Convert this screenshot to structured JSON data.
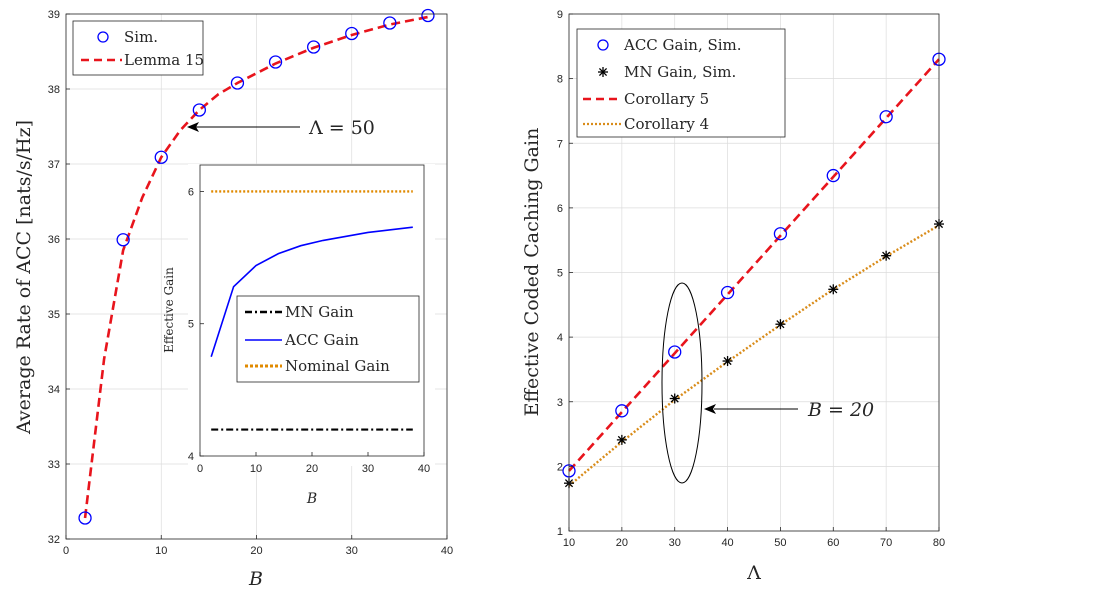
{
  "chart_data": [
    {
      "type": "line",
      "xlabel": "B",
      "ylabel": "Average Rate of ACC [nats/s/Hz]",
      "xlim": [
        0,
        40
      ],
      "ylim": [
        32,
        39
      ],
      "xticks": [
        "0",
        "10",
        "20",
        "30",
        "40"
      ],
      "yticks": [
        "32",
        "33",
        "34",
        "35",
        "36",
        "37",
        "38",
        "39"
      ],
      "grid": true,
      "legend_position": "top-left",
      "series": [
        {
          "name": "Sim.",
          "style": "markers",
          "marker": "circle",
          "color": "#0000ff",
          "x": [
            2,
            6,
            10,
            14,
            18,
            22,
            26,
            30,
            34,
            38
          ],
          "y": [
            32.28,
            35.99,
            37.09,
            37.72,
            38.08,
            38.36,
            38.56,
            38.74,
            38.88,
            38.98
          ]
        },
        {
          "name": "Lemma 15",
          "style": "dashed",
          "color": "#e8141c",
          "x": [
            2,
            4,
            6,
            8,
            10,
            12,
            14,
            16,
            18,
            22,
            26,
            30,
            34,
            38
          ],
          "y": [
            32.28,
            34.4,
            35.85,
            36.55,
            37.09,
            37.45,
            37.72,
            37.93,
            38.08,
            38.34,
            38.55,
            38.72,
            38.86,
            38.96
          ]
        }
      ],
      "annotations": [
        {
          "text": "Λ = 50",
          "arrow_to": {
            "x": 12.8,
            "y": 37.48
          }
        }
      ],
      "inset": {
        "xlabel": "B",
        "ylabel": "Effective Gain",
        "xlim": [
          0,
          40
        ],
        "ylim": [
          4,
          6.2
        ],
        "xticks": [
          "0",
          "10",
          "20",
          "30",
          "40"
        ],
        "yticks": [
          "4",
          "5",
          "6"
        ],
        "legend_position": "bottom-right",
        "series": [
          {
            "name": "MN Gain",
            "style": "dashdot",
            "color": "#000000",
            "x": [
              2,
              38
            ],
            "y": [
              4.2,
              4.2
            ]
          },
          {
            "name": "ACC Gain",
            "style": "solid",
            "color": "#0000ff",
            "x": [
              2,
              6,
              10,
              14,
              18,
              22,
              26,
              30,
              34,
              38
            ],
            "y": [
              4.75,
              5.28,
              5.44,
              5.53,
              5.59,
              5.63,
              5.66,
              5.69,
              5.71,
              5.73
            ]
          },
          {
            "name": "Nominal Gain",
            "style": "dotted",
            "color": "#e08a00",
            "x": [
              2,
              38
            ],
            "y": [
              6,
              6
            ]
          }
        ]
      }
    },
    {
      "type": "line",
      "xlabel": "Λ",
      "ylabel": "Effective Coded Caching Gain",
      "xlim": [
        10,
        80
      ],
      "ylim": [
        1,
        9
      ],
      "xticks": [
        "10",
        "20",
        "30",
        "40",
        "50",
        "60",
        "70",
        "80"
      ],
      "yticks": [
        "1",
        "2",
        "3",
        "4",
        "5",
        "6",
        "7",
        "8",
        "9"
      ],
      "grid": true,
      "legend_position": "top-left",
      "series": [
        {
          "name": "ACC Gain, Sim.",
          "style": "markers",
          "marker": "circle",
          "color": "#0000ff",
          "x": [
            10,
            20,
            30,
            40,
            50,
            60,
            70,
            80
          ],
          "y": [
            1.93,
            2.86,
            3.77,
            4.69,
            5.6,
            6.5,
            7.41,
            8.3
          ]
        },
        {
          "name": "MN Gain, Sim.",
          "style": "markers",
          "marker": "asterisk",
          "color": "#000000",
          "x": [
            10,
            20,
            30,
            40,
            50,
            60,
            70,
            80
          ],
          "y": [
            1.74,
            2.41,
            3.05,
            3.63,
            4.2,
            4.74,
            5.26,
            5.75
          ]
        },
        {
          "name": "Corollary 5",
          "style": "dashed",
          "color": "#e8141c",
          "x": [
            10,
            80
          ],
          "y": [
            1.93,
            8.3
          ]
        },
        {
          "name": "Corollary 4",
          "style": "dotted",
          "color": "#d98c1a",
          "x": [
            10,
            20,
            30,
            40,
            50,
            60,
            70,
            80
          ],
          "y": [
            1.7,
            2.38,
            3.03,
            3.62,
            4.19,
            4.74,
            5.25,
            5.73
          ]
        }
      ],
      "annotations": [
        {
          "text": "B = 20",
          "ellipse_center": {
            "x": 31.5,
            "y": 3.3
          },
          "arrow_to": {
            "x": 34.5,
            "y": 2.92
          }
        }
      ]
    }
  ],
  "labels": {
    "left_ylabel": "Average Rate of ACC [nats/s/Hz]",
    "left_xlabel": "B",
    "left_legend": [
      "Sim.",
      "Lemma 15"
    ],
    "left_annotation": "Λ = 50",
    "inset_ylabel": "Effective Gain",
    "inset_xlabel": "B",
    "inset_legend": [
      "MN Gain",
      "ACC Gain",
      "Nominal Gain"
    ],
    "right_ylabel": "Effective Coded Caching Gain",
    "right_xlabel": "Λ",
    "right_legend": [
      "ACC Gain, Sim.",
      "MN Gain, Sim.",
      "Corollary 5",
      "Corollary 4"
    ],
    "right_annotation": "B = 20"
  },
  "colors": {
    "blue": "#0000ff",
    "red": "#e8141c",
    "orange": "#e08a00",
    "black": "#000000"
  }
}
